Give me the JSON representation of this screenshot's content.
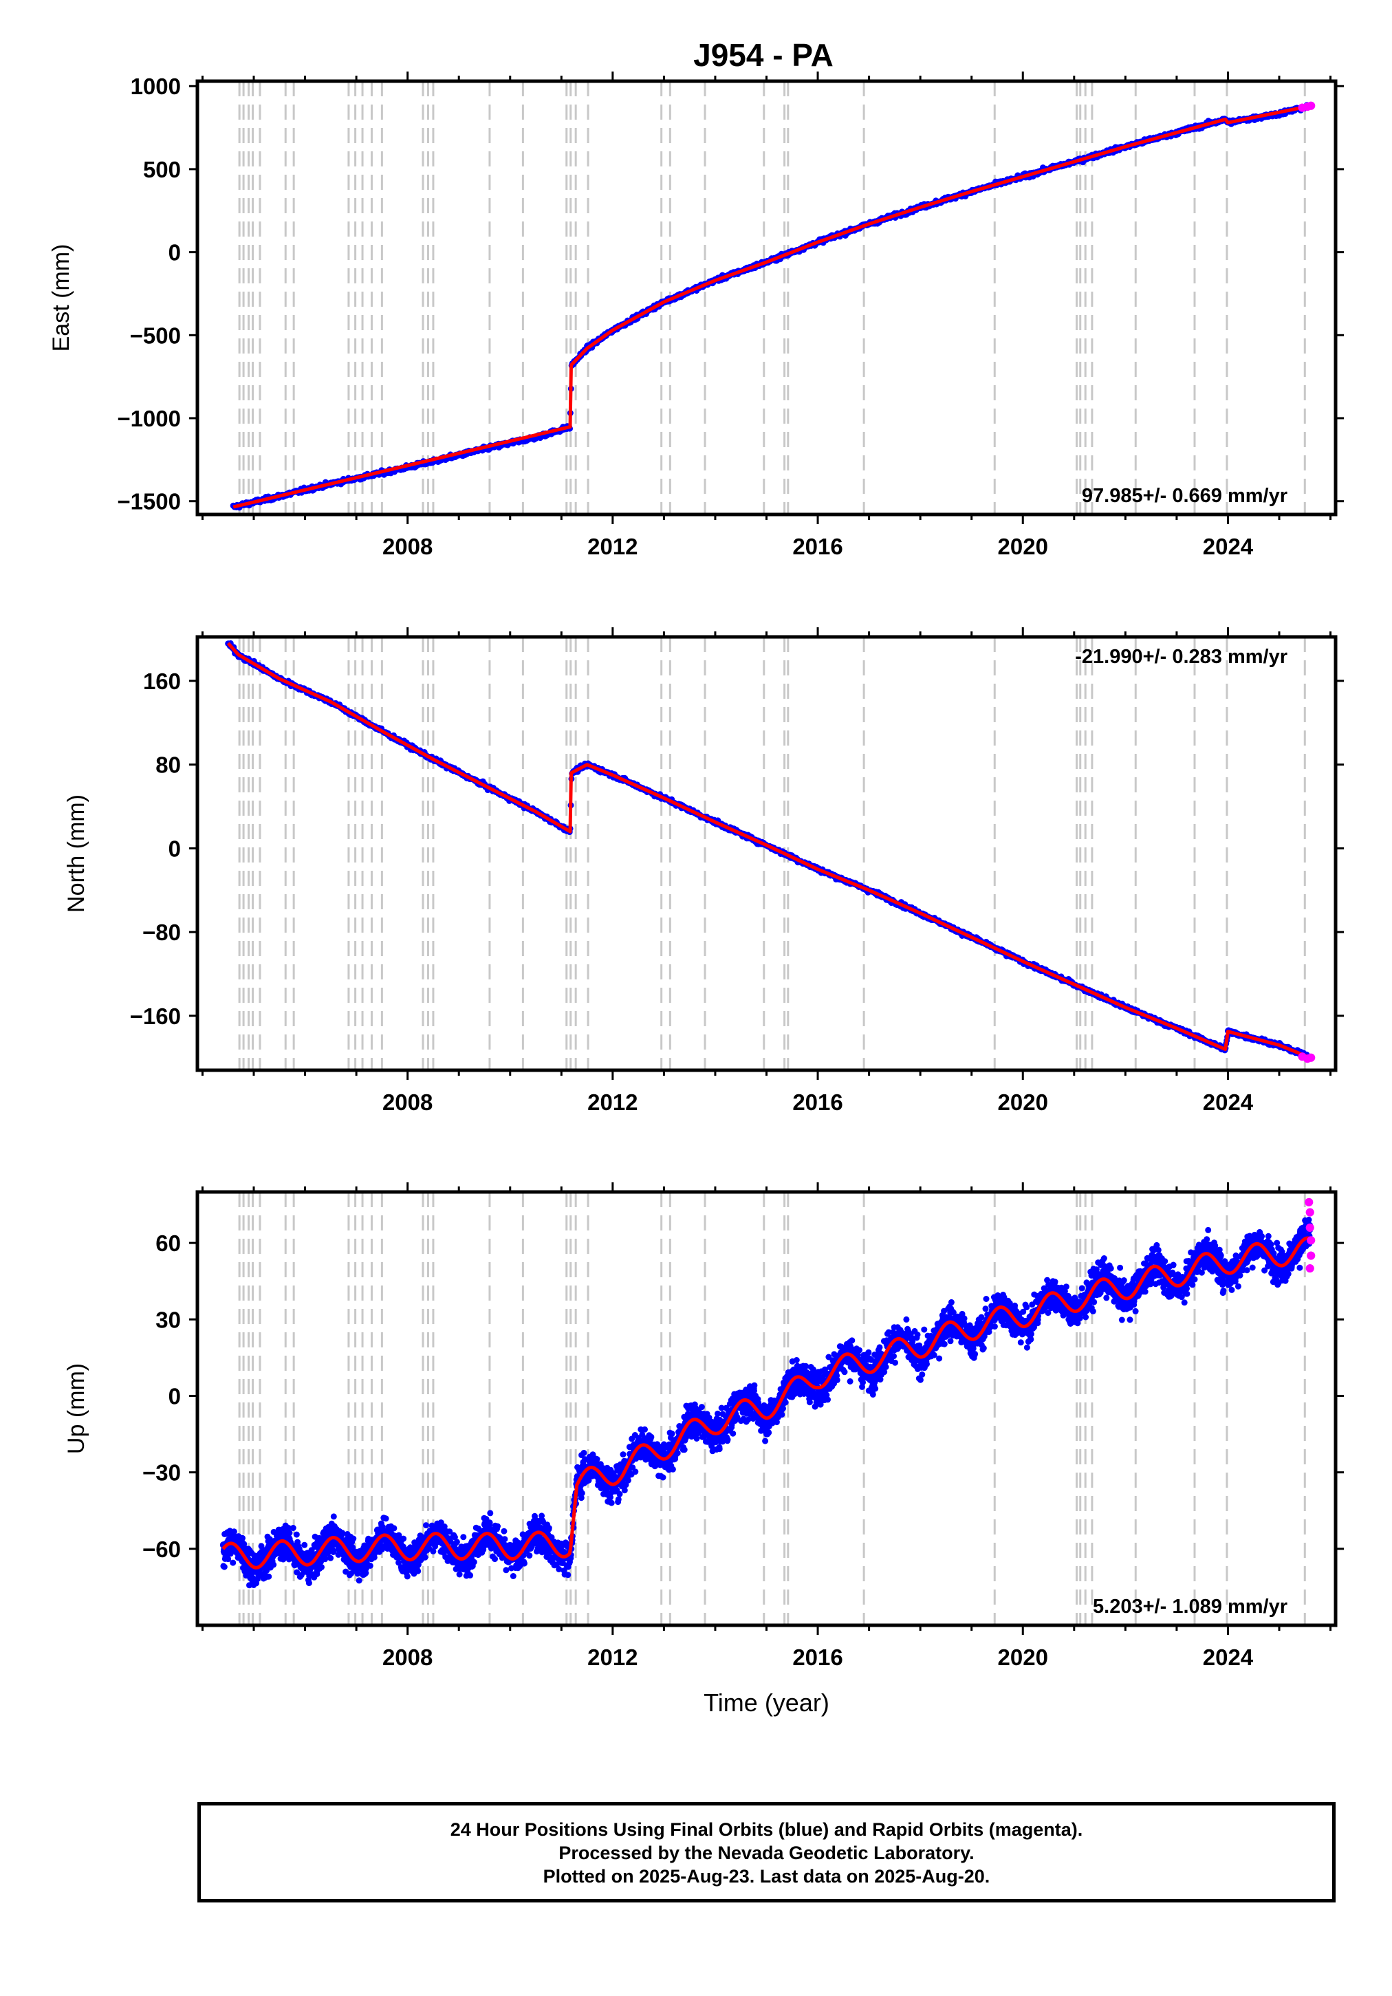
{
  "chart_data": [
    {
      "type": "scatter",
      "title": "J954 - PA",
      "ylabel": "East (mm)",
      "xlabel": "",
      "xlim": [
        2003.9,
        2026.1
      ],
      "ylim": [
        -1580,
        1030
      ],
      "yticks": [
        1000,
        500,
        0,
        -500,
        -1000,
        -1500
      ],
      "ytick_labels": [
        "1000",
        "500",
        "0",
        "−500",
        "−1000",
        "−1500"
      ],
      "xticks": [
        2008,
        2012,
        2016,
        2020,
        2024
      ],
      "xtick_labels": [
        "2008",
        "2012",
        "2016",
        "2020",
        "2024"
      ],
      "rate_label": "97.985+/- 0.669 mm/yr",
      "rate_position": "bottom-right",
      "grid": false,
      "series": [
        {
          "name": "Final Orbits",
          "color": "#0000ff",
          "x": [
            2004.6,
            2005.5,
            2006.5,
            2007.5,
            2008.5,
            2009.5,
            2010.5,
            2011.17,
            2011.2,
            2011.5,
            2012.0,
            2013.0,
            2014.0,
            2015.0,
            2016.0,
            2017.0,
            2018.0,
            2019.0,
            2020.0,
            2021.0,
            2022.0,
            2023.0,
            2023.95,
            2024.0,
            2025.0,
            2025.6
          ],
          "y": [
            -1535,
            -1470,
            -1395,
            -1330,
            -1260,
            -1185,
            -1115,
            -1052,
            -680,
            -580,
            -470,
            -300,
            -170,
            -60,
            60,
            170,
            270,
            365,
            455,
            545,
            635,
            720,
            800,
            780,
            835,
            880
          ]
        },
        {
          "name": "Rapid Orbits",
          "color": "#ff00ff",
          "x": [
            2025.45,
            2025.55,
            2025.62
          ],
          "y": [
            870,
            876,
            882
          ]
        }
      ],
      "model_fit": {
        "color": "#ff0000",
        "x": [
          2004.6,
          2011.17,
          2011.19,
          2011.5,
          2012.0,
          2013.0,
          2014.0,
          2015.0,
          2016.0,
          2017.0,
          2018.0,
          2019.0,
          2020.0,
          2021.0,
          2022.0,
          2023.0,
          2023.95,
          2024.0,
          2025.6
        ],
        "y": [
          -1535,
          -1052,
          -680,
          -580,
          -470,
          -300,
          -170,
          -60,
          60,
          170,
          270,
          365,
          455,
          545,
          635,
          720,
          800,
          780,
          880
        ]
      },
      "event_lines": [
        2004.72,
        2004.8,
        2004.9,
        2004.98,
        2005.12,
        2005.62,
        2005.78,
        2006.85,
        2006.98,
        2007.12,
        2007.3,
        2007.5,
        2008.3,
        2008.4,
        2008.5,
        2009.6,
        2010.25,
        2011.1,
        2011.18,
        2011.28,
        2011.52,
        2012.95,
        2013.12,
        2013.8,
        2014.95,
        2015.35,
        2015.42,
        2016.9,
        2019.45,
        2021.05,
        2021.12,
        2021.22,
        2021.35,
        2022.2,
        2023.35,
        2023.98,
        2025.5
      ]
    },
    {
      "type": "scatter",
      "title": "",
      "ylabel": "North (mm)",
      "xlabel": "",
      "xlim": [
        2003.9,
        2026.1
      ],
      "ylim": [
        -212,
        202
      ],
      "yticks": [
        160,
        80,
        0,
        -80,
        -160
      ],
      "ytick_labels": [
        "160",
        "80",
        "0",
        "−80",
        "−160"
      ],
      "xticks": [
        2008,
        2012,
        2016,
        2020,
        2024
      ],
      "xtick_labels": [
        "2008",
        "2012",
        "2016",
        "2020",
        "2024"
      ],
      "rate_label": "-21.990+/- 0.283 mm/yr",
      "rate_position": "top-right",
      "grid": false,
      "series": [
        {
          "name": "Final Orbits",
          "color": "#0000ff",
          "x": [
            2004.5,
            2004.7,
            2005.5,
            2006.5,
            2007.5,
            2008.5,
            2009.5,
            2010.5,
            2011.17,
            2011.2,
            2011.5,
            2012.0,
            2013.0,
            2014.0,
            2015.0,
            2016.0,
            2017.0,
            2018.0,
            2019.0,
            2020.0,
            2021.0,
            2022.0,
            2023.0,
            2023.95,
            2024.0,
            2025.0,
            2025.6
          ],
          "y": [
            196,
            185,
            162,
            140,
            112,
            85,
            60,
            35,
            16,
            72,
            80,
            70,
            48,
            25,
            3,
            -20,
            -40,
            -62,
            -85,
            -108,
            -130,
            -152,
            -172,
            -192,
            -175,
            -188,
            -200
          ]
        },
        {
          "name": "Rapid Orbits",
          "color": "#ff00ff",
          "x": [
            2025.45,
            2025.55,
            2025.62
          ],
          "y": [
            -199,
            -201,
            -200
          ]
        }
      ],
      "model_fit": {
        "color": "#ff0000",
        "x": [
          2004.5,
          2004.7,
          2005.5,
          2006.5,
          2007.5,
          2008.5,
          2009.5,
          2010.5,
          2011.17,
          2011.19,
          2011.5,
          2012.0,
          2013.0,
          2014.0,
          2015.0,
          2016.0,
          2017.0,
          2018.0,
          2019.0,
          2020.0,
          2021.0,
          2022.0,
          2023.0,
          2023.95,
          2024.0,
          2025.0,
          2025.6
        ],
        "y": [
          196,
          185,
          162,
          140,
          112,
          85,
          60,
          35,
          16,
          72,
          80,
          70,
          48,
          25,
          3,
          -20,
          -40,
          -62,
          -85,
          -108,
          -130,
          -152,
          -172,
          -192,
          -175,
          -188,
          -200
        ]
      },
      "event_lines": [
        2004.72,
        2004.8,
        2004.9,
        2004.98,
        2005.12,
        2005.62,
        2005.78,
        2006.85,
        2006.98,
        2007.12,
        2007.3,
        2007.5,
        2008.3,
        2008.4,
        2008.5,
        2009.6,
        2010.25,
        2011.1,
        2011.18,
        2011.28,
        2011.52,
        2012.95,
        2013.12,
        2013.8,
        2014.95,
        2015.35,
        2015.42,
        2016.9,
        2019.45,
        2021.05,
        2021.12,
        2021.22,
        2021.35,
        2022.2,
        2023.35,
        2023.98,
        2025.5
      ]
    },
    {
      "type": "scatter",
      "title": "",
      "ylabel": "Up (mm)",
      "xlabel": "Time (year)",
      "xlim": [
        2003.9,
        2026.1
      ],
      "ylim": [
        -90,
        80
      ],
      "yticks": [
        60,
        30,
        0,
        -30,
        -60
      ],
      "ytick_labels": [
        "60",
        "30",
        "0",
        "−30",
        "−60"
      ],
      "xticks": [
        2008,
        2012,
        2016,
        2020,
        2024
      ],
      "xtick_labels": [
        "2008",
        "2012",
        "2016",
        "2020",
        "2024"
      ],
      "rate_label": "5.203+/- 1.089 mm/yr",
      "rate_position": "bottom-right",
      "grid": false,
      "series": [
        {
          "name": "Final Orbits",
          "color": "#0000ff",
          "trend_x": [
            2004.4,
            2005.5,
            2007.0,
            2008.5,
            2010.0,
            2011.17,
            2011.3,
            2012.0,
            2013.0,
            2014.0,
            2015.0,
            2015.4,
            2016.0,
            2017.0,
            2018.0,
            2019.0,
            2020.0,
            2021.0,
            2022.0,
            2023.0,
            2024.0,
            2025.0,
            2025.6
          ],
          "trend_y": [
            -63,
            -62,
            -60,
            -59,
            -59,
            -58,
            -35,
            -30,
            -20,
            -10,
            -4,
            0,
            8,
            14,
            20,
            27,
            32,
            38,
            43,
            48,
            53,
            56,
            57
          ],
          "scatter_spread_mm": 8
        },
        {
          "name": "Rapid Orbits",
          "color": "#ff00ff",
          "x": [
            2025.58,
            2025.6,
            2025.6,
            2025.62,
            2025.62,
            2025.6
          ],
          "y": [
            76,
            72,
            66,
            61,
            55,
            50
          ]
        }
      ],
      "model_fit": {
        "color": "#ff0000",
        "x": [
          2004.4,
          2005.5,
          2007.0,
          2008.5,
          2010.0,
          2011.17,
          2011.3,
          2012.0,
          2013.0,
          2014.0,
          2015.0,
          2015.4,
          2016.0,
          2017.0,
          2018.0,
          2019.0,
          2020.0,
          2021.0,
          2022.0,
          2023.0,
          2024.0,
          2025.0,
          2025.6
        ],
        "y": [
          -63,
          -62,
          -60,
          -59,
          -59,
          -58,
          -35,
          -30,
          -20,
          -10,
          -4,
          0,
          8,
          14,
          20,
          27,
          32,
          38,
          43,
          48,
          53,
          56,
          57
        ],
        "seasonal_amplitude_mm": 5
      },
      "event_lines": [
        2004.72,
        2004.8,
        2004.9,
        2004.98,
        2005.12,
        2005.62,
        2005.78,
        2006.85,
        2006.98,
        2007.12,
        2007.3,
        2007.5,
        2008.3,
        2008.4,
        2008.5,
        2009.6,
        2010.25,
        2011.1,
        2011.18,
        2011.28,
        2011.52,
        2012.95,
        2013.12,
        2013.8,
        2014.95,
        2015.35,
        2015.42,
        2016.9,
        2019.45,
        2021.05,
        2021.12,
        2021.22,
        2021.35,
        2022.2,
        2023.35,
        2023.98,
        2025.5
      ]
    }
  ],
  "footer": {
    "line1": "24 Hour Positions Using Final Orbits (blue) and Rapid Orbits (magenta).",
    "line2": "Processed by the Nevada Geodetic Laboratory.",
    "line3": "Plotted on 2025-Aug-23. Last data on 2025-Aug-20."
  }
}
